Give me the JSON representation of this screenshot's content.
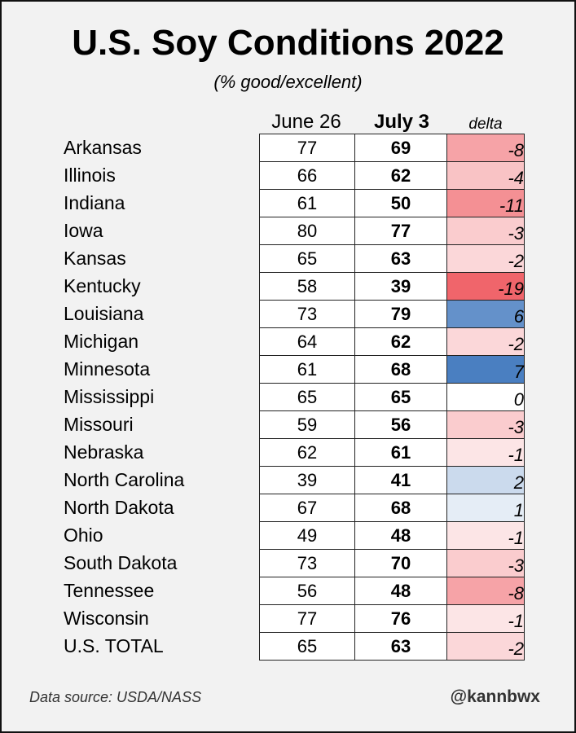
{
  "chart_data": {
    "type": "table",
    "title": "U.S. Soy Conditions 2022",
    "subtitle": "(% good/excellent)",
    "columns": [
      "June 26",
      "July 3",
      "delta"
    ],
    "rows": [
      {
        "state": "Arkansas",
        "june26": "77",
        "july3": "69",
        "delta": "-8"
      },
      {
        "state": "Illinois",
        "june26": "66",
        "july3": "62",
        "delta": "-4"
      },
      {
        "state": "Indiana",
        "june26": "61",
        "july3": "50",
        "delta": "-11"
      },
      {
        "state": "Iowa",
        "june26": "80",
        "july3": "77",
        "delta": "-3"
      },
      {
        "state": "Kansas",
        "june26": "65",
        "july3": "63",
        "delta": "-2"
      },
      {
        "state": "Kentucky",
        "june26": "58",
        "july3": "39",
        "delta": "-19"
      },
      {
        "state": "Louisiana",
        "june26": "73",
        "july3": "79",
        "delta": "6"
      },
      {
        "state": "Michigan",
        "june26": "64",
        "july3": "62",
        "delta": "-2"
      },
      {
        "state": "Minnesota",
        "june26": "61",
        "july3": "68",
        "delta": "7"
      },
      {
        "state": "Mississippi",
        "june26": "65",
        "july3": "65",
        "delta": "0"
      },
      {
        "state": "Missouri",
        "june26": "59",
        "july3": "56",
        "delta": "-3"
      },
      {
        "state": "Nebraska",
        "june26": "62",
        "july3": "61",
        "delta": "-1"
      },
      {
        "state": "North Carolina",
        "june26": "39",
        "july3": "41",
        "delta": "2"
      },
      {
        "state": "North Dakota",
        "june26": "67",
        "july3": "68",
        "delta": "1"
      },
      {
        "state": "Ohio",
        "june26": "49",
        "july3": "48",
        "delta": "-1"
      },
      {
        "state": "South Dakota",
        "june26": "73",
        "july3": "70",
        "delta": "-3"
      },
      {
        "state": "Tennessee",
        "june26": "56",
        "july3": "48",
        "delta": "-8"
      },
      {
        "state": "Wisconsin",
        "june26": "77",
        "july3": "76",
        "delta": "-1"
      },
      {
        "state": "U.S. TOTAL",
        "june26": "65",
        "july3": "63",
        "delta": "-2"
      }
    ],
    "colors": {
      "negative": "#f0656b",
      "positive": "#4a7fc1",
      "neutral": "#ffffff"
    }
  },
  "footer": {
    "source": "Data source: USDA/NASS",
    "handle": "@kannbwx"
  }
}
